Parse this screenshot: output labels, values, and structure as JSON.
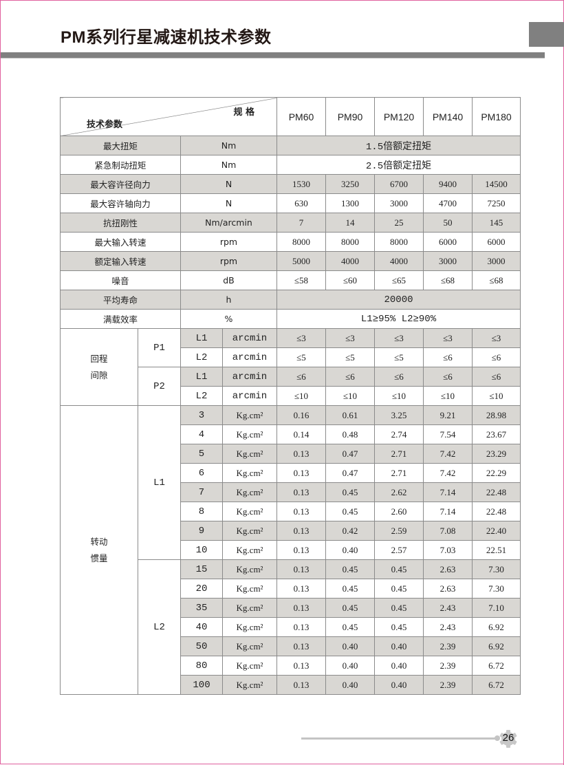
{
  "title": "PM系列行星减速机技术参数",
  "page_number": "26",
  "colors": {
    "shade": "#d9d7d3",
    "bar": "#808080",
    "frame": "#e0609e"
  },
  "header": {
    "spec_label": "规 格",
    "param_label": "技术参数",
    "models": [
      "PM60",
      "PM90",
      "PM120",
      "PM140",
      "PM180"
    ]
  },
  "general": [
    {
      "param": "最大扭矩",
      "unit": "Nm",
      "merged": "1.5倍额定扭矩"
    },
    {
      "param": "紧急制动扭矩",
      "unit": "Nm",
      "merged": "2.5倍额定扭矩"
    },
    {
      "param": "最大容许径向力",
      "unit": "N",
      "values": [
        "1530",
        "3250",
        "6700",
        "9400",
        "14500"
      ]
    },
    {
      "param": "最大容许轴向力",
      "unit": "N",
      "values": [
        "630",
        "1300",
        "3000",
        "4700",
        "7250"
      ]
    },
    {
      "param": "抗扭刚性",
      "unit": "Nm/arcmin",
      "values": [
        "7",
        "14",
        "25",
        "50",
        "145"
      ]
    },
    {
      "param": "最大输入转速",
      "unit": "rpm",
      "values": [
        "8000",
        "8000",
        "8000",
        "6000",
        "6000"
      ]
    },
    {
      "param": "额定输入转速",
      "unit": "rpm",
      "values": [
        "5000",
        "4000",
        "4000",
        "3000",
        "3000"
      ]
    },
    {
      "param": "噪音",
      "unit": "dB",
      "values": [
        "≤58",
        "≤60",
        "≤65",
        "≤68",
        "≤68"
      ]
    },
    {
      "param": "平均寿命",
      "unit": "h",
      "merged": "20000"
    },
    {
      "param": "满载效率",
      "unit": "%",
      "merged": "L1≥95%   L2≥90%"
    }
  ],
  "backlash": {
    "label_lines": [
      "回程",
      "间隙"
    ],
    "groups": [
      {
        "precision": "P1",
        "rows": [
          {
            "stage": "L1",
            "unit": "arcmin",
            "values": [
              "≤3",
              "≤3",
              "≤3",
              "≤3",
              "≤3"
            ]
          },
          {
            "stage": "L2",
            "unit": "arcmin",
            "values": [
              "≤5",
              "≤5",
              "≤5",
              "≤6",
              "≤6"
            ]
          }
        ]
      },
      {
        "precision": "P2",
        "rows": [
          {
            "stage": "L1",
            "unit": "arcmin",
            "values": [
              "≤6",
              "≤6",
              "≤6",
              "≤6",
              "≤6"
            ]
          },
          {
            "stage": "L2",
            "unit": "arcmin",
            "values": [
              "≤10",
              "≤10",
              "≤10",
              "≤10",
              "≤10"
            ]
          }
        ]
      }
    ]
  },
  "inertia": {
    "label_lines": [
      "转动",
      "惯量"
    ],
    "groups": [
      {
        "stage": "L1",
        "rows": [
          {
            "ratio": "3",
            "unit": "Kg.cm²",
            "values": [
              "0.16",
              "0.61",
              "3.25",
              "9.21",
              "28.98"
            ]
          },
          {
            "ratio": "4",
            "unit": "Kg.cm²",
            "values": [
              "0.14",
              "0.48",
              "2.74",
              "7.54",
              "23.67"
            ]
          },
          {
            "ratio": "5",
            "unit": "Kg.cm²",
            "values": [
              "0.13",
              "0.47",
              "2.71",
              "7.42",
              "23.29"
            ]
          },
          {
            "ratio": "6",
            "unit": "Kg.cm²",
            "values": [
              "0.13",
              "0.47",
              "2.71",
              "7.42",
              "22.29"
            ]
          },
          {
            "ratio": "7",
            "unit": "Kg.cm²",
            "values": [
              "0.13",
              "0.45",
              "2.62",
              "7.14",
              "22.48"
            ]
          },
          {
            "ratio": "8",
            "unit": "Kg.cm²",
            "values": [
              "0.13",
              "0.45",
              "2.60",
              "7.14",
              "22.48"
            ]
          },
          {
            "ratio": "9",
            "unit": "Kg.cm²",
            "values": [
              "0.13",
              "0.42",
              "2.59",
              "7.08",
              "22.40"
            ]
          },
          {
            "ratio": "10",
            "unit": "Kg.cm²",
            "values": [
              "0.13",
              "0.40",
              "2.57",
              "7.03",
              "22.51"
            ]
          }
        ]
      },
      {
        "stage": "L2",
        "rows": [
          {
            "ratio": "15",
            "unit": "Kg.cm²",
            "values": [
              "0.13",
              "0.45",
              "0.45",
              "2.63",
              "7.30"
            ]
          },
          {
            "ratio": "20",
            "unit": "Kg.cm²",
            "values": [
              "0.13",
              "0.45",
              "0.45",
              "2.63",
              "7.30"
            ]
          },
          {
            "ratio": "35",
            "unit": "Kg.cm²",
            "values": [
              "0.13",
              "0.45",
              "0.45",
              "2.43",
              "7.10"
            ]
          },
          {
            "ratio": "40",
            "unit": "Kg.cm²",
            "values": [
              "0.13",
              "0.45",
              "0.45",
              "2.43",
              "6.92"
            ]
          },
          {
            "ratio": "50",
            "unit": "Kg.cm²",
            "values": [
              "0.13",
              "0.40",
              "0.40",
              "2.39",
              "6.92"
            ]
          },
          {
            "ratio": "80",
            "unit": "Kg.cm²",
            "values": [
              "0.13",
              "0.40",
              "0.40",
              "2.39",
              "6.72"
            ]
          },
          {
            "ratio": "100",
            "unit": "Kg.cm²",
            "values": [
              "0.13",
              "0.40",
              "0.40",
              "2.39",
              "6.72"
            ]
          }
        ]
      }
    ]
  }
}
